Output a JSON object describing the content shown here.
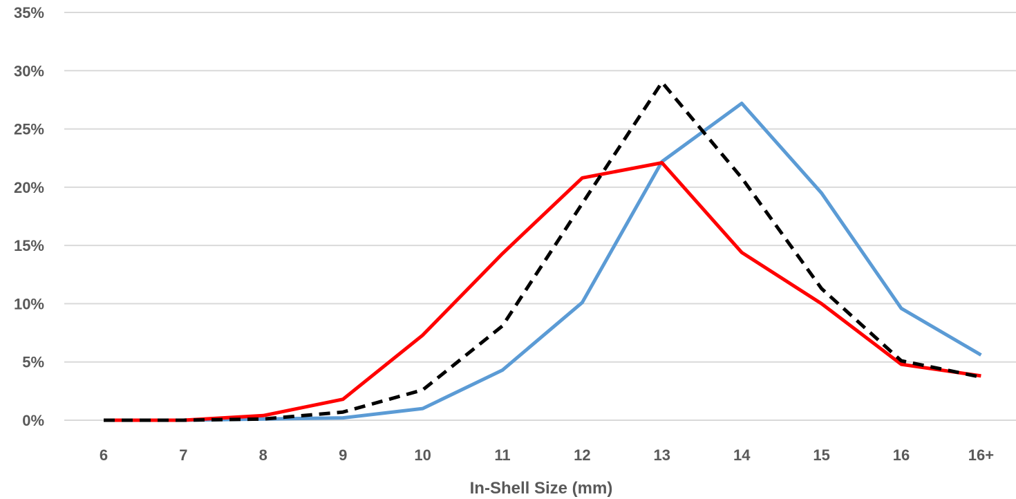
{
  "chart_data": {
    "type": "line",
    "title": "",
    "xlabel": "In-Shell Size (mm)",
    "ylabel": "",
    "categories": [
      "6",
      "7",
      "8",
      "9",
      "10",
      "11",
      "12",
      "13",
      "14",
      "15",
      "16",
      "16+"
    ],
    "y_tick_labels": [
      "0%",
      "5%",
      "10%",
      "15%",
      "20%",
      "25%",
      "30%",
      "35%"
    ],
    "y_ticks": [
      0,
      5,
      10,
      15,
      20,
      25,
      30,
      35
    ],
    "ylim": [
      0,
      35
    ],
    "grid": true,
    "legend": "none",
    "series": [
      {
        "color": "#5b9bd5",
        "dash": "solid",
        "values": [
          0,
          0,
          0.1,
          0.2,
          1.0,
          4.3,
          10.1,
          22.2,
          27.2,
          19.5,
          9.6,
          5.6
        ]
      },
      {
        "color": "#ff0000",
        "dash": "solid",
        "values": [
          0,
          0,
          0.4,
          1.8,
          7.3,
          14.3,
          20.8,
          22.1,
          14.4,
          10.0,
          4.8,
          3.8
        ]
      },
      {
        "color": "#000000",
        "dash": "dashed",
        "values": [
          0,
          0,
          0.1,
          0.7,
          2.6,
          8.1,
          18.6,
          29.0,
          20.8,
          11.3,
          5.1,
          3.7
        ]
      }
    ]
  }
}
